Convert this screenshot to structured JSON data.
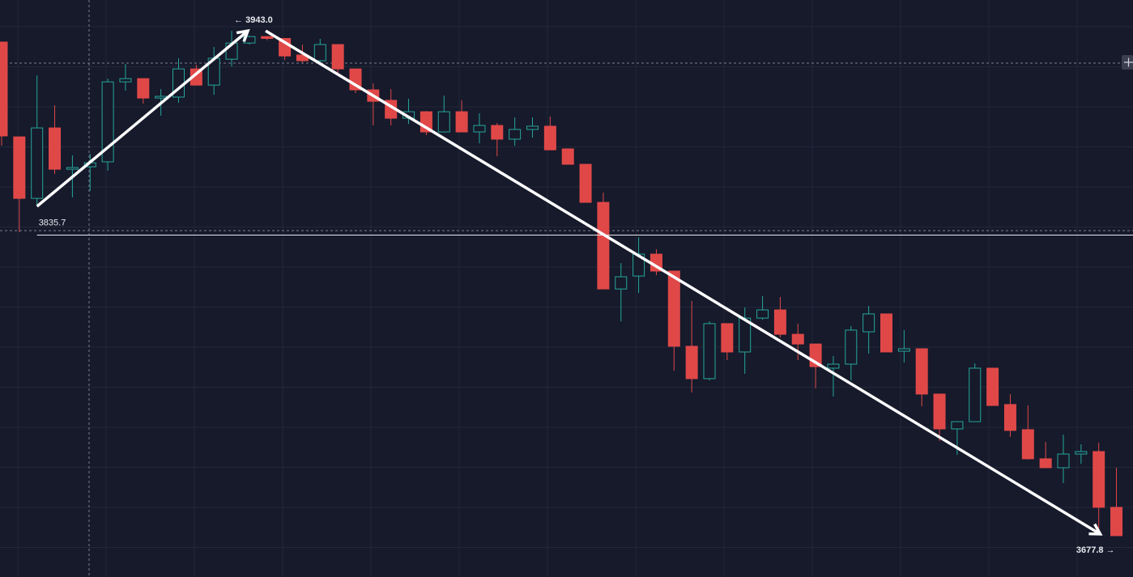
{
  "chart_data": {
    "type": "candlestick",
    "up_color": "#26a69a",
    "down_color": "#e04848",
    "ylim": [
      3656.1,
      3959.2
    ],
    "open": [
      3937.1,
      3887.3,
      3855.0,
      3892.0,
      3870.3,
      3871.6,
      3874.2,
      3916.2,
      3917.9,
      3907.7,
      3908.2,
      3923.0,
      3914.5,
      3928.1,
      3936.6,
      3940.0,
      3939.0,
      3930.3,
      3927.3,
      3935.8,
      3923.0,
      3912.0,
      3906.5,
      3897.1,
      3900.5,
      3889.9,
      3900.5,
      3889.9,
      3893.3,
      3886.1,
      3891.2,
      3892.9,
      3881.0,
      3872.9,
      3852.9,
      3807.4,
      3814.2,
      3825.7,
      3816.8,
      3777.3,
      3760.3,
      3789.2,
      3774.3,
      3792.1,
      3796.4,
      3783.6,
      3778.5,
      3765.8,
      3767.9,
      3784.9,
      3794.3,
      3774.7,
      3776.0,
      3752.2,
      3733.9,
      3737.7,
      3765.8,
      3746.7,
      3733.5,
      3718.2,
      3713.5,
      3720.7,
      3722.0,
      3692.7
    ],
    "high": [
      3937.1,
      3887.3,
      3919.6,
      3903.9,
      3877.6,
      3878.4,
      3917.9,
      3925.6,
      3917.9,
      3912.4,
      3928.6,
      3925.2,
      3934.5,
      3943.0,
      3940.5,
      3940.3,
      3939.0,
      3935.8,
      3938.8,
      3935.8,
      3923.0,
      3915.4,
      3912.4,
      3907.3,
      3900.9,
      3909.0,
      3906.5,
      3899.7,
      3894.6,
      3897.5,
      3897.5,
      3898.0,
      3881.0,
      3872.9,
      3858.0,
      3821.0,
      3834.6,
      3828.3,
      3816.8,
      3801.1,
      3790.4,
      3789.2,
      3797.7,
      3803.6,
      3803.2,
      3789.2,
      3778.5,
      3772.2,
      3787.9,
      3798.5,
      3794.3,
      3785.8,
      3776.0,
      3752.2,
      3737.7,
      3768.3,
      3765.8,
      3752.2,
      3746.2,
      3727.1,
      3730.9,
      3725.8,
      3726.7,
      3713.5
    ],
    "low": [
      3882.7,
      3837.2,
      3850.8,
      3867.8,
      3855.5,
      3858.9,
      3869.5,
      3911.6,
      3904.8,
      3898.4,
      3905.2,
      3914.5,
      3909.4,
      3924.3,
      3935.8,
      3938.0,
      3927.7,
      3926.4,
      3926.0,
      3920.9,
      3910.3,
      3893.3,
      3893.3,
      3894.1,
      3888.2,
      3889.9,
      3889.9,
      3883.9,
      3877.1,
      3882.7,
      3886.9,
      3880.5,
      3872.9,
      3852.9,
      3807.4,
      3790.4,
      3805.3,
      3814.7,
      3764.5,
      3753.0,
      3759.4,
      3770.0,
      3762.8,
      3791.3,
      3781.9,
      3770.0,
      3755.2,
      3750.9,
      3759.4,
      3773.4,
      3774.3,
      3768.8,
      3745.8,
      3727.5,
      3720.3,
      3737.7,
      3746.2,
      3729.7,
      3717.8,
      3713.5,
      3705.4,
      3715.6,
      3680.8,
      3677.8
    ],
    "close": [
      3887.8,
      3855.0,
      3892.0,
      3870.3,
      3871.2,
      3873.7,
      3916.2,
      3917.9,
      3907.7,
      3908.6,
      3923.0,
      3914.5,
      3928.6,
      3936.6,
      3940.0,
      3939.0,
      3929.8,
      3927.3,
      3935.8,
      3923.0,
      3912.0,
      3906.0,
      3897.1,
      3900.5,
      3889.9,
      3900.5,
      3889.9,
      3893.3,
      3886.1,
      3891.2,
      3892.9,
      3880.5,
      3872.9,
      3852.9,
      3807.4,
      3813.8,
      3825.7,
      3816.8,
      3777.3,
      3760.3,
      3789.2,
      3774.3,
      3792.1,
      3796.4,
      3783.6,
      3778.5,
      3766.6,
      3767.9,
      3785.8,
      3794.3,
      3774.3,
      3776.0,
      3752.2,
      3733.9,
      3737.7,
      3765.8,
      3746.2,
      3733.1,
      3718.2,
      3713.5,
      3720.7,
      3722.0,
      3692.7,
      3677.8
    ],
    "annotations": [
      {
        "value": 3835.7,
        "label": "3835.7"
      },
      {
        "value": 3943.0,
        "label": "← 3943.0"
      },
      {
        "value": 3677.8,
        "label": "3677.8 →"
      }
    ]
  }
}
